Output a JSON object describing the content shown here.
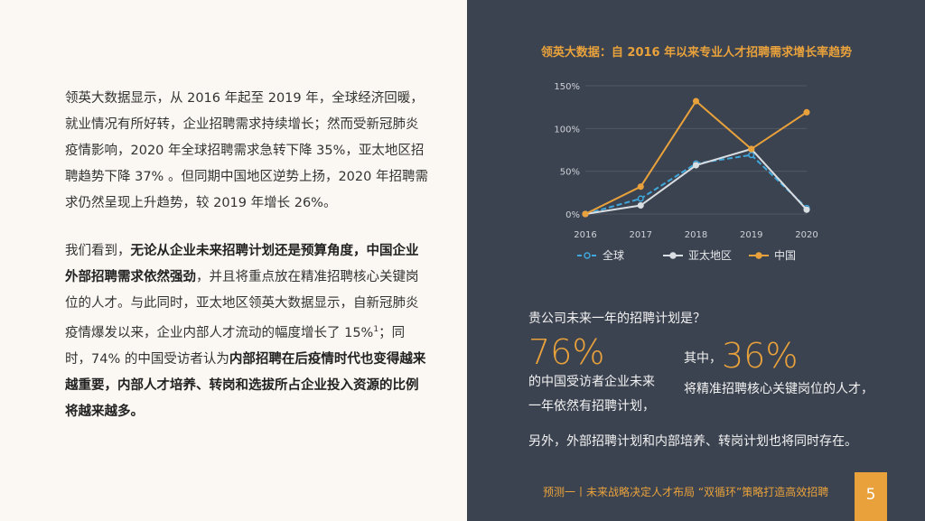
{
  "left": {
    "paragraph1": "领英大数据显示，从 2016 年起至 2019 年，全球经济回暖，就业情况有所好转，企业招聘需求持续增长；然而受新冠肺炎疫情影响，2020 年全球招聘需求急转下降 35%，亚太地区招聘趋势下降  37% 。但同期中国地区逆势上扬，2020 年招聘需求仍然呈现上升趋势，较 2019 年增长 26%。",
    "paragraph2": [
      "我们看到，",
      "无论从企业未来招聘计划还是预算角度，中国企业外部招聘需求依然强劲",
      "，并且将重点放在精准招聘核心关键岗位的人才。与此同时，亚太地区领英大数据显示，自新冠肺炎疫情爆发以来，企业内部人才流动的幅度增长了 15%",
      "1",
      "；同时，74% 的中国受访者认为",
      "内部招聘在后疫情时代也变得越来越重要，内部人才培养、转岗和选拔所占企业投入资源的比例将越来越多。"
    ]
  },
  "chart_data": {
    "type": "line",
    "title": "领英大数据：自 2016 年以来专业人才招聘需求增长率趋势",
    "categories": [
      "2016",
      "2017",
      "2018",
      "2019",
      "2020"
    ],
    "series": [
      {
        "name": "全球",
        "color": "#3fa7dc",
        "linestyle": "dashed",
        "values": [
          0,
          18,
          59,
          69,
          7
        ]
      },
      {
        "name": "亚太地区",
        "color": "#d9dee2",
        "linestyle": "solid",
        "values": [
          0,
          10,
          57,
          76,
          5
        ]
      },
      {
        "name": "中国",
        "color": "#e9a23b",
        "linestyle": "solid",
        "values": [
          0,
          32,
          132,
          76,
          119
        ]
      }
    ],
    "ylim": [
      0,
      150
    ],
    "yticks": [
      {
        "value": 0,
        "label": "0%"
      },
      {
        "value": 50,
        "label": "50%"
      },
      {
        "value": 100,
        "label": "100%"
      },
      {
        "value": 150,
        "label": "150%"
      }
    ],
    "grid": true
  },
  "survey": {
    "question": "贵公司未来一年的招聘计划是？",
    "stat1": "76%",
    "stat1_text": "的中国受访者企业未来一年依然有招聘计划，",
    "prefix2": "其中，",
    "stat2": "36%",
    "stat2_text": "将精准招聘核心关键岗位的人才，",
    "note": "另外，外部招聘计划和内部培养、转岗计划也将同时存在。"
  },
  "footer": {
    "text": "预测一丨未来战略决定人才布局 “双循环”策略打造高效招聘",
    "page": "5"
  }
}
